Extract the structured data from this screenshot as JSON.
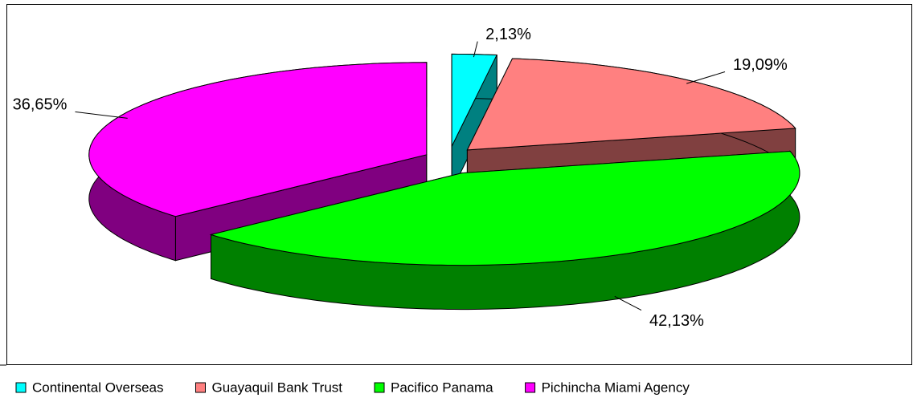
{
  "chart_data": {
    "type": "pie",
    "categories": [
      "Continental Overseas",
      "Guayaquil Bank Trust",
      "Pacifico Panama",
      "Pichincha Miami Agency"
    ],
    "values": [
      2.13,
      19.09,
      42.13,
      36.65
    ],
    "value_labels": [
      "2,13%",
      "19,09%",
      "42,13%",
      "36,65%"
    ],
    "colors": [
      "#00ffff",
      "#ff8080",
      "#00ff00",
      "#ff00ff"
    ],
    "side_colors": [
      "#008080",
      "#804040",
      "#008000",
      "#800080"
    ],
    "legend": "bottom"
  }
}
